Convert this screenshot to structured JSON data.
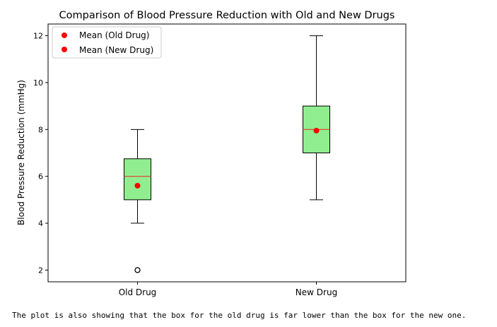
{
  "chart_data": {
    "type": "box",
    "title": "Comparison of Blood Pressure Reduction with Old and New Drugs",
    "xlabel": "",
    "ylabel": "Blood Pressure Reduction (mmHg)",
    "categories": [
      "Old Drug",
      "New Drug"
    ],
    "ylim": [
      1.5,
      12.5
    ],
    "yticks": [
      2,
      4,
      6,
      8,
      10,
      12
    ],
    "box_color": "#90ee90",
    "median_color": "#e8392a",
    "mean_color": "#ff0000",
    "boxes": [
      {
        "category": "Old Drug",
        "whisker_low": 4,
        "q1": 5,
        "median": 6,
        "q3": 6.75,
        "whisker_high": 8,
        "mean": 5.6,
        "outliers": [
          2
        ]
      },
      {
        "category": "New Drug",
        "whisker_low": 5,
        "q1": 7,
        "median": 8,
        "q3": 9,
        "whisker_high": 12,
        "mean": 7.95,
        "outliers": []
      }
    ],
    "legend": {
      "position": "top-left",
      "entries": [
        "Mean (Old Drug)",
        "Mean (New Drug)"
      ]
    }
  },
  "caption": "The plot is also showing that the box for the old drug is far lower than the box for the new one."
}
